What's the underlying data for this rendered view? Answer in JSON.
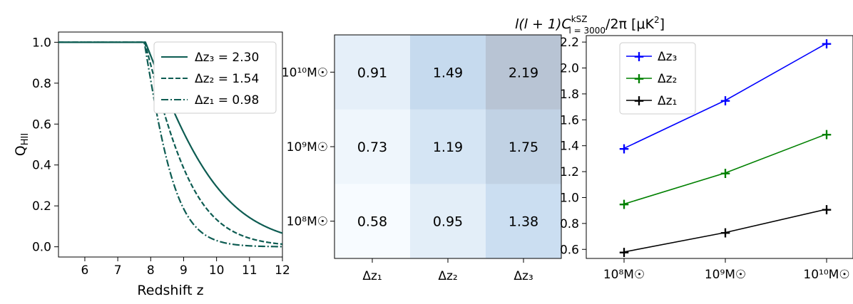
{
  "chart_data": [
    {
      "type": "line",
      "xlabel": "Redshift z",
      "ylabel": "Q",
      "ylabel_sub": "HII",
      "xlim": [
        5.2,
        12
      ],
      "ylim": [
        -0.05,
        1.05
      ],
      "xticks": [
        "6",
        "7",
        "8",
        "9",
        "10",
        "11",
        "12"
      ],
      "yticks": [
        "0.0",
        "0.2",
        "0.4",
        "0.6",
        "0.8",
        "1.0"
      ],
      "color": "#0d5c52",
      "legend_position": "top-right",
      "series": [
        {
          "name": "Δz₃ = 2.30",
          "style": "solid",
          "delta_z": 2.3
        },
        {
          "name": "Δz₂ = 1.54",
          "style": "dashed",
          "delta_z": 1.54
        },
        {
          "name": "Δz₁ = 0.98",
          "style": "dashdot",
          "delta_z": 0.98
        }
      ],
      "z_mid": 7.78
    },
    {
      "type": "heatmap",
      "title": "l(l + 1)C",
      "title_sup": "kSZ",
      "title_sub": "l = 3000",
      "title_tail": "/2π [μK",
      "title_tail_sup": "2",
      "title_end": "]",
      "x_categories": [
        "Δz₁",
        "Δz₂",
        "Δz₃"
      ],
      "y_categories": [
        "10¹⁰M☉",
        "10⁹M☉",
        "10⁸M☉"
      ],
      "values": [
        [
          0.91,
          1.49,
          2.19
        ],
        [
          0.73,
          1.19,
          1.75
        ],
        [
          0.58,
          0.95,
          1.38
        ]
      ],
      "value_labels": [
        [
          "0.91",
          "1.49",
          "2.19"
        ],
        [
          "0.73",
          "1.19",
          "1.75"
        ],
        [
          "0.58",
          "0.95",
          "1.38"
        ]
      ]
    },
    {
      "type": "line",
      "categories": [
        "10⁸M☉",
        "10⁹M☉",
        "10¹⁰M☉"
      ],
      "ylim": [
        0.53,
        2.25
      ],
      "yticks": [
        "0.6",
        "0.8",
        "1.0",
        "1.2",
        "1.4",
        "1.6",
        "1.8",
        "2.0",
        "2.2"
      ],
      "legend_position": "top-left",
      "series": [
        {
          "name": "Δz₃",
          "color": "#0000ff",
          "values": [
            1.38,
            1.75,
            2.19
          ]
        },
        {
          "name": "Δz₂",
          "color": "#008000",
          "values": [
            0.95,
            1.19,
            1.49
          ]
        },
        {
          "name": "Δz₁",
          "color": "#000000",
          "values": [
            0.58,
            0.73,
            0.91
          ]
        }
      ]
    }
  ]
}
